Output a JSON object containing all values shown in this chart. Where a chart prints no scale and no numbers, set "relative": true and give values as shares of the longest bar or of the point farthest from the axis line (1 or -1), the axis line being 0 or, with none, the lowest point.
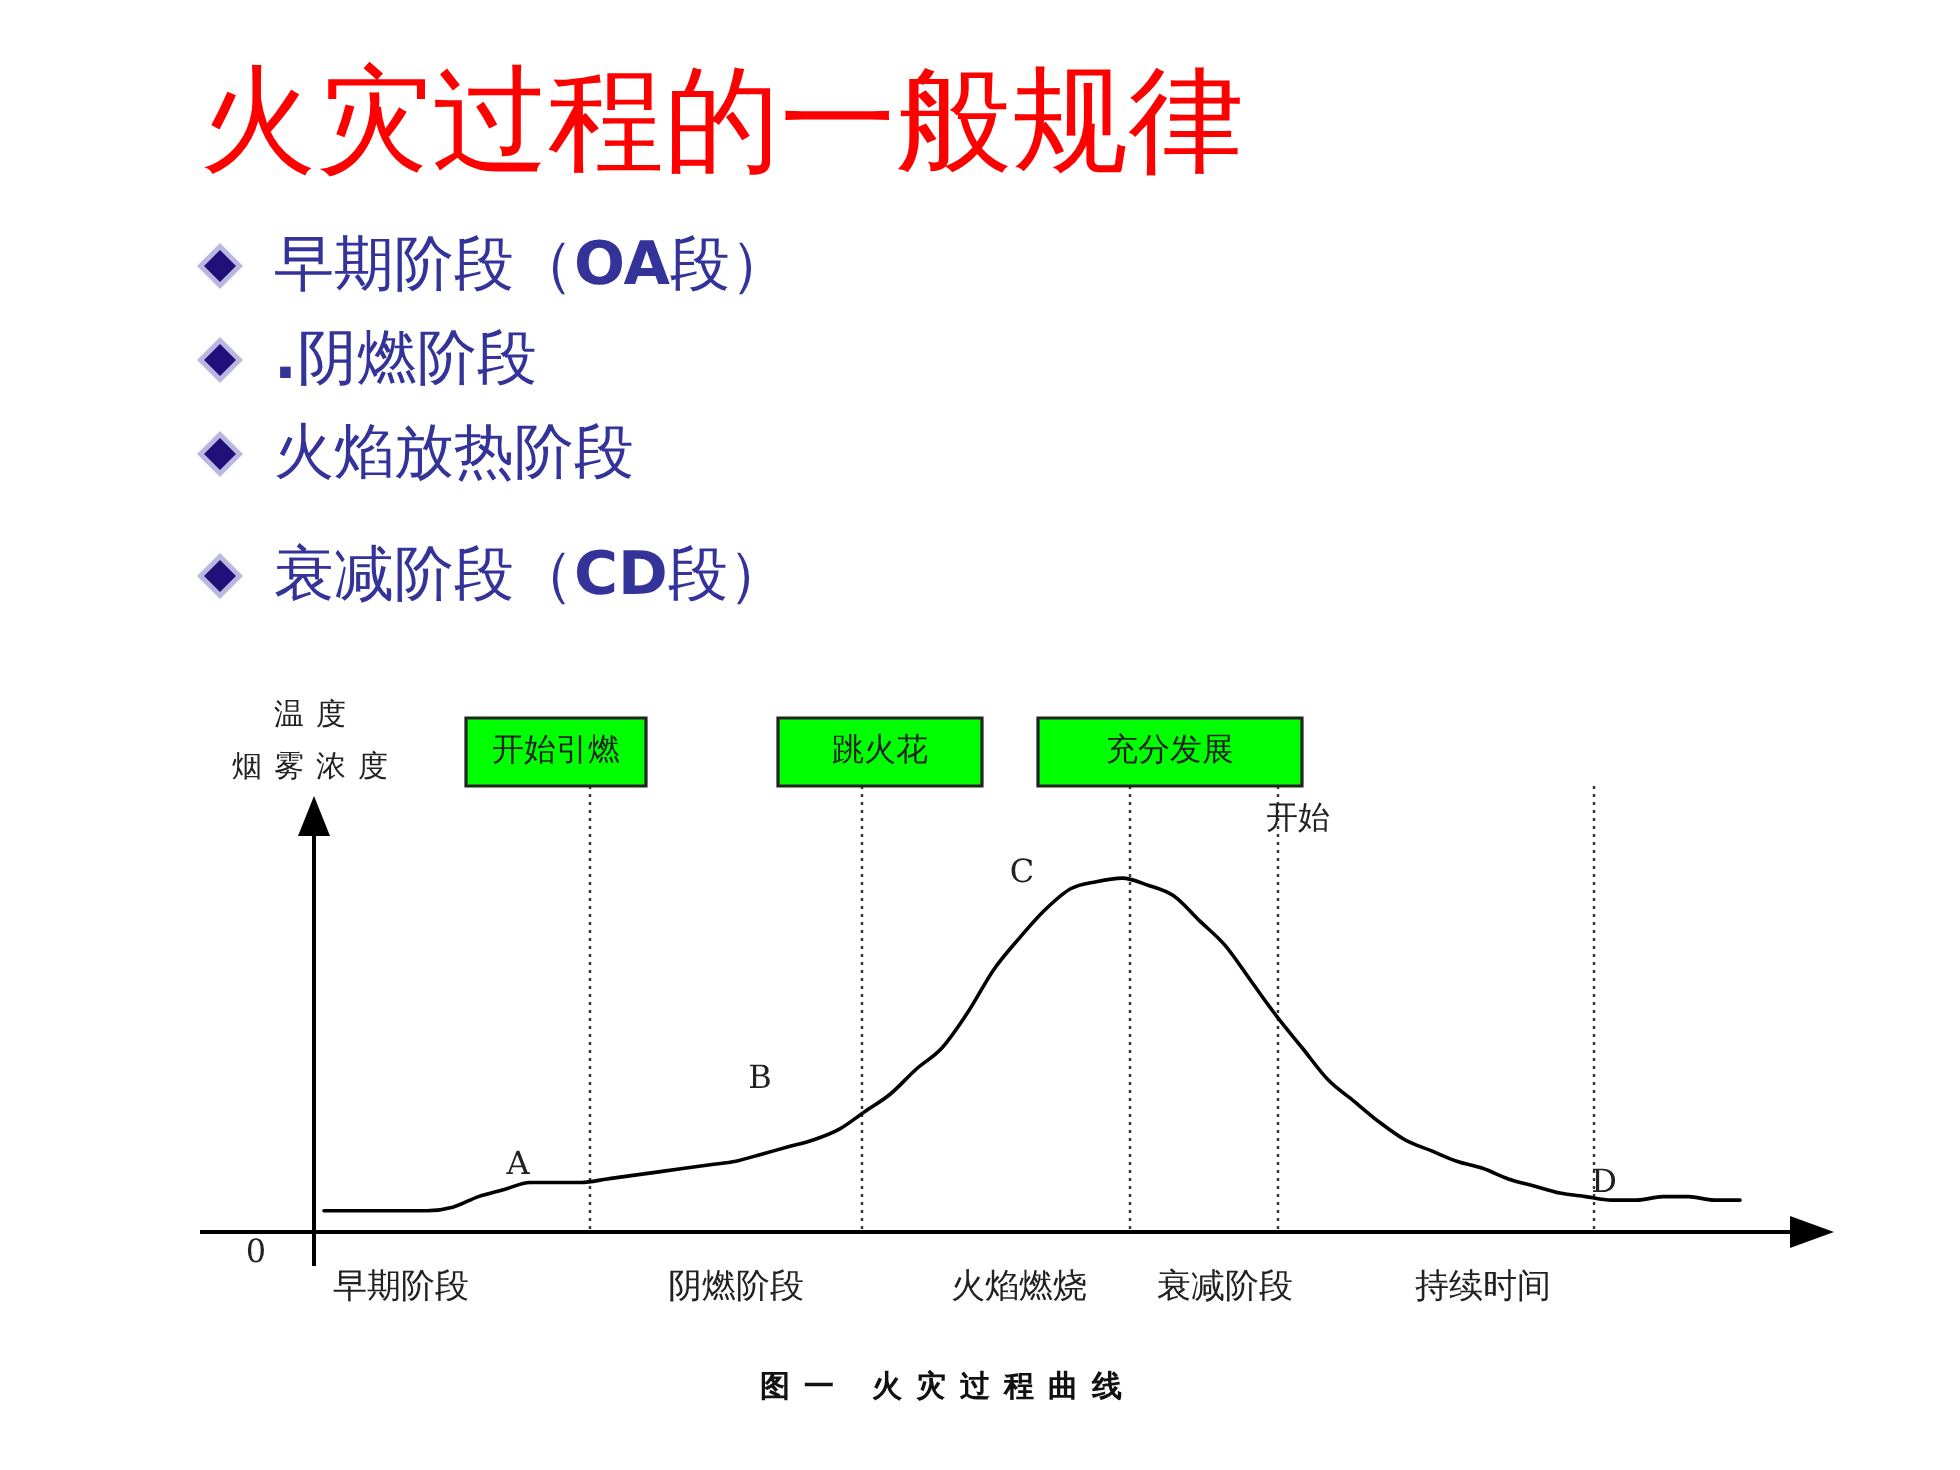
{
  "chart_data": {
    "type": "line",
    "relative": true,
    "title": "火灾过程的一般规律",
    "ylabel": "温度烟雾浓度",
    "categories": [
      null,
      null,
      null,
      "早期阶段",
      null,
      null,
      null,
      null,
      null,
      null,
      null,
      null,
      null,
      null,
      null,
      null,
      "阴燃阶段",
      null,
      null,
      null,
      null,
      null,
      null,
      null,
      null,
      null,
      null,
      "火焰燃烧",
      null,
      null,
      null,
      null,
      null,
      null,
      null,
      "衰减阶段",
      null,
      null,
      null,
      null,
      null,
      null,
      null,
      null,
      null,
      "持续时间",
      null,
      null,
      null,
      null,
      null,
      null,
      null,
      null,
      null,
      null
    ],
    "series": [
      {
        "color": "#000000",
        "values": [
          0.06,
          0.06,
          0.06,
          0.06,
          0.06,
          0.07,
          0.1,
          0.12,
          0.14,
          0.14,
          0.14,
          0.15,
          0.16,
          0.17,
          0.18,
          0.19,
          0.2,
          0.22,
          0.24,
          0.26,
          0.29,
          0.34,
          0.39,
          0.46,
          0.52,
          0.62,
          0.74,
          0.83,
          0.91,
          0.97,
          0.99,
          1.0,
          0.98,
          0.95,
          0.88,
          0.81,
          0.71,
          0.61,
          0.52,
          0.43,
          0.37,
          0.31,
          0.26,
          0.23,
          0.2,
          0.18,
          0.15,
          0.13,
          0.11,
          0.1,
          0.09,
          0.09,
          0.1,
          0.1,
          0.09,
          0.09
        ]
      }
    ],
    "marker": "none",
    "annotations": [
      "早期阶段（OA段）",
      ".阴燃阶段",
      "火焰放热阶段",
      "衰减阶段（CD段）",
      "开始引燃",
      "跳火花",
      "充分发展",
      "开始",
      "0",
      "A",
      "B",
      "C",
      "D",
      "图一 火灾过程曲线"
    ]
  }
}
